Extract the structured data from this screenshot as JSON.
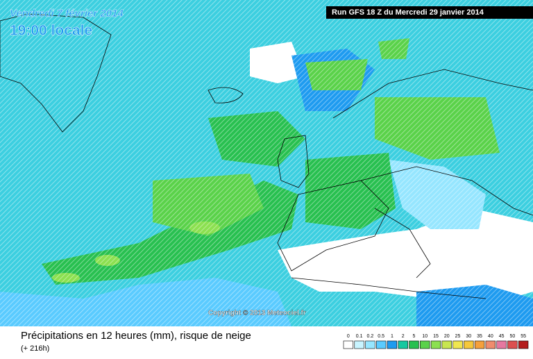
{
  "header": {
    "date": "Vendredi 7 février 2014",
    "time": "19:00 locale",
    "run": "Run GFS 18 Z du Mercredi 29 janvier 2014"
  },
  "copyright": "Copyright © 2013 Meteociel.fr",
  "footer": {
    "title": "Précipitations en 12 heures (mm), risque de neige",
    "lead": "(+ 216h)"
  },
  "legend": {
    "values": [
      0,
      0.1,
      0.2,
      0.5,
      1,
      2,
      5,
      10,
      15,
      20,
      25,
      30,
      35,
      40,
      45,
      50,
      55
    ],
    "colors": [
      "#ffffff",
      "#c8f4ff",
      "#96e6ff",
      "#5acbff",
      "#1e9bf0",
      "#16c8a0",
      "#28c050",
      "#5ad24a",
      "#8ce050",
      "#c8e650",
      "#f0e650",
      "#f5c83c",
      "#f5a03c",
      "#f08c6e",
      "#e678a0",
      "#dc5050",
      "#b41e1e"
    ]
  }
}
